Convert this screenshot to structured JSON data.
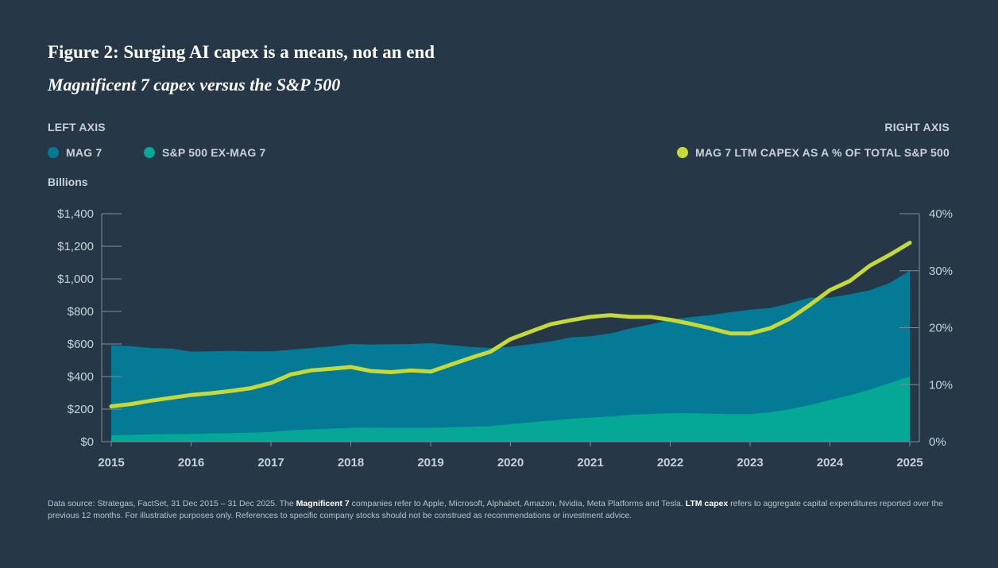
{
  "title": "Figure 2: Surging AI capex is a means, not an end",
  "subtitle": "Magnificent 7 capex versus the S&P 500",
  "axis_heads": {
    "left": "LEFT AXIS",
    "right": "RIGHT AXIS"
  },
  "legend": {
    "mag7": "MAG 7",
    "sp500_ex": "S&P 500 EX-MAG 7",
    "pct": "MAG 7 LTM CAPEX AS A % OF TOTAL S&P 500"
  },
  "units_label": "Billions",
  "colors": {
    "background": "#263847",
    "mag7": "#047a96",
    "sp500_ex": "#05a896",
    "pct_line": "#c6d936"
  },
  "chart_data": {
    "type": "area",
    "x_labels": [
      "2015",
      "2016",
      "2017",
      "2018",
      "2019",
      "2020",
      "2021",
      "2022",
      "2023",
      "2024",
      "2025"
    ],
    "x": [
      2015,
      2015.25,
      2015.5,
      2015.75,
      2016,
      2016.25,
      2016.5,
      2016.75,
      2017,
      2017.25,
      2017.5,
      2017.75,
      2018,
      2018.25,
      2018.5,
      2018.75,
      2019,
      2019.25,
      2019.5,
      2019.75,
      2020,
      2020.25,
      2020.5,
      2020.75,
      2021,
      2021.25,
      2021.5,
      2021.75,
      2022,
      2022.25,
      2022.5,
      2022.75,
      2023,
      2023.25,
      2023.5,
      2023.75,
      2024,
      2024.25,
      2024.5,
      2024.75,
      2025
    ],
    "series": [
      {
        "name": "MAG 7",
        "axis": "left",
        "values": [
          555,
          545,
          530,
          525,
          505,
          505,
          505,
          500,
          495,
          495,
          500,
          505,
          515,
          510,
          515,
          515,
          520,
          505,
          490,
          480,
          475,
          480,
          485,
          500,
          500,
          510,
          530,
          550,
          575,
          590,
          605,
          625,
          640,
          640,
          650,
          660,
          630,
          620,
          610,
          615,
          650
        ]
      },
      {
        "name": "S&P 500 EX-MAG 7",
        "axis": "left",
        "values": [
          38,
          42,
          45,
          47,
          48,
          50,
          53,
          55,
          60,
          70,
          75,
          80,
          85,
          86,
          84,
          85,
          85,
          88,
          92,
          95,
          108,
          118,
          130,
          140,
          148,
          155,
          165,
          170,
          175,
          175,
          172,
          170,
          170,
          180,
          200,
          225,
          255,
          285,
          320,
          360,
          400
        ]
      },
      {
        "name": "MAG 7 LTM CAPEX AS A % OF TOTAL S&P 500",
        "axis": "right",
        "values": [
          6.2,
          6.6,
          7.2,
          7.7,
          8.2,
          8.5,
          8.9,
          9.4,
          10.3,
          11.8,
          12.5,
          12.8,
          13.1,
          12.4,
          12.2,
          12.5,
          12.3,
          13.5,
          14.7,
          15.8,
          18.0,
          19.3,
          20.6,
          21.3,
          21.9,
          22.2,
          21.9,
          21.9,
          21.4,
          20.7,
          19.9,
          19.0,
          19.0,
          19.9,
          21.6,
          24.0,
          26.6,
          28.2,
          30.9,
          32.8,
          34.9
        ]
      }
    ],
    "y_left": {
      "min": 0,
      "max": 1400,
      "ticks": [
        "$0",
        "$200",
        "$400",
        "$600",
        "$800",
        "$1,000",
        "$1,200",
        "$1,400"
      ]
    },
    "y_right": {
      "min": 0,
      "max": 40,
      "ticks": [
        "0%",
        "10%",
        "20%",
        "30%",
        "40%"
      ]
    }
  },
  "footnote": {
    "part1": "Data source: Strategas, FactSet, 31 Dec 2015 – 31 Dec 2025. The ",
    "bold1": "Magnificent 7",
    "part2": " companies refer to Apple, Microsoft, Alphabet, Amazon, Nvidia, Meta Platforms and Tesla. ",
    "bold2": "LTM capex",
    "part3": " refers to aggregate capital expenditures reported over the previous 12 months. For illustrative purposes only. References to specific company stocks should not be construed as recommendations or investment advice."
  }
}
